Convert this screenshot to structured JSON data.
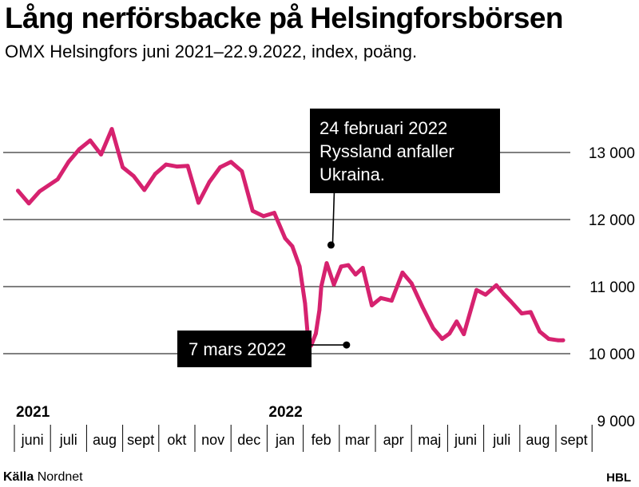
{
  "title": "Lång nerförsbacke på Helsingforsbörsen",
  "subtitle": "OMX Helsingfors juni 2021–22.9.2022, index, poäng.",
  "source_label": "Källa",
  "source_name": "Nordnet",
  "brand": "HBL",
  "colors": {
    "line": "#d6226f",
    "grid": "#000000",
    "annotation_bg": "#000000",
    "annotation_text": "#ffffff"
  },
  "chart_data": {
    "type": "line",
    "title": "Lång nerförsbacke på Helsingforsbörsen",
    "subtitle": "OMX Helsingfors juni 2021–22.9.2022, index, poäng.",
    "ylim": [
      9000,
      13000
    ],
    "yticks": [
      13000,
      12000,
      11000,
      10000,
      9000
    ],
    "ytick_labels": [
      "13 000",
      "12 000",
      "11 000",
      "10 000",
      "9 000"
    ],
    "years": [
      {
        "label": "2021",
        "month_index": 0
      },
      {
        "label": "2022",
        "month_index": 7
      }
    ],
    "months": [
      "juni",
      "juli",
      "aug",
      "sept",
      "okt",
      "nov",
      "dec",
      "jan",
      "feb",
      "mar",
      "apr",
      "maj",
      "juni",
      "juli",
      "aug",
      "sept"
    ],
    "grid": true,
    "x_unit": "months since 1 June 2021",
    "series": [
      {
        "x": [
          0.1,
          0.4,
          0.7,
          1.2,
          1.5,
          1.8,
          2.1,
          2.4,
          2.7,
          3.0,
          3.3,
          3.6,
          3.9,
          4.2,
          4.5,
          4.8,
          5.1,
          5.4,
          5.7,
          6.0,
          6.3,
          6.6,
          6.9,
          7.2,
          7.5,
          7.7,
          7.9,
          8.05,
          8.15,
          8.22,
          8.35,
          8.45,
          8.5,
          8.65,
          8.85,
          9.05,
          9.25,
          9.45,
          9.65,
          9.9,
          10.15,
          10.45,
          10.75,
          11.0,
          11.3,
          11.6,
          11.85,
          12.05,
          12.25,
          12.45,
          12.8,
          13.05,
          13.35,
          13.55,
          13.75,
          14.05,
          14.3,
          14.55,
          14.8,
          15.05,
          15.2
        ],
        "values": [
          12430,
          12240,
          12420,
          12600,
          12860,
          13050,
          13180,
          12970,
          13350,
          12780,
          12650,
          12440,
          12680,
          12820,
          12790,
          12800,
          12250,
          12560,
          12780,
          12860,
          12720,
          12130,
          12050,
          12100,
          11720,
          11600,
          11300,
          10750,
          10120,
          10120,
          10300,
          10650,
          11000,
          11350,
          11030,
          11300,
          11320,
          11180,
          11280,
          10720,
          10830,
          10790,
          11210,
          11050,
          10700,
          10380,
          10220,
          10300,
          10480,
          10290,
          10950,
          10880,
          11020,
          10890,
          10780,
          10600,
          10620,
          10330,
          10220,
          10200,
          10200
        ]
      }
    ],
    "annotations": [
      {
        "label": [
          "24 februari 2022",
          "Ryssland anfaller",
          "Ukraina."
        ],
        "x": 8.77,
        "y": 11620
      },
      {
        "label": [
          "7 mars 2022"
        ],
        "x": 9.2,
        "y": 10130
      }
    ]
  }
}
